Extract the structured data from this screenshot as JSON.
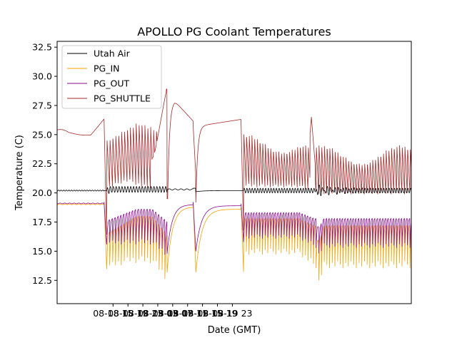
{
  "chart_data": {
    "type": "line",
    "title": "APOLLO PG Coolant Temperatures",
    "xlabel": "Date (GMT)",
    "ylabel": "Temperature (C)",
    "xlim_hours": [
      -3,
      92
    ],
    "ylim": [
      10.5,
      33
    ],
    "x_ticks": [
      {
        "hour": 12,
        "label": "08-18 15"
      },
      {
        "hour": 16,
        "label": "08-18 19"
      },
      {
        "hour": 20,
        "label": "08-18 23"
      },
      {
        "hour": 24,
        "label": "08-19 03"
      },
      {
        "hour": 28,
        "label": "08-19 07"
      },
      {
        "hour": 32,
        "label": "08-19 11"
      },
      {
        "hour": 36,
        "label": "08-19 15"
      },
      {
        "hour": 40,
        "label": "08-19 19"
      },
      {
        "hour": 44,
        "label": "08-19 23"
      }
    ],
    "y_ticks": [
      12.5,
      15.0,
      17.5,
      20.0,
      22.5,
      25.0,
      27.5,
      30.0,
      32.5
    ],
    "y_tick_labels": [
      "12.5",
      "15.0",
      "17.5",
      "20.0",
      "22.5",
      "25.0",
      "27.5",
      "30.0",
      "32.5"
    ],
    "legend_position": "top-left",
    "series": [
      {
        "name": "Utah Air",
        "color": "#000000",
        "baseline": 20.2,
        "cycle_amplitude": 0.4
      },
      {
        "name": "PG_IN",
        "color": "#f5a300",
        "steady_value": 19.0,
        "cycle_min": 12.9,
        "cycle_max": 19.2
      },
      {
        "name": "PG_OUT",
        "color": "#8b0e8b",
        "steady_value": 19.1,
        "cycle_min": 15.4,
        "cycle_max": 19.3
      },
      {
        "name": "PG_SHUTTLE",
        "color": "#a52a2a",
        "start_value": 25.2,
        "peak_value": 28.9,
        "cycle_min": 20.5,
        "cycle_max": 26.4
      }
    ],
    "segments_hours": [
      {
        "start": -3,
        "end": 9.6,
        "mode": "steady"
      },
      {
        "start": 9.6,
        "end": 26.5,
        "mode": "cycling"
      },
      {
        "start": 26.5,
        "end": 46.3,
        "mode": "recovery"
      },
      {
        "start": 46.3,
        "end": 66.0,
        "mode": "cycling"
      },
      {
        "start": 66.0,
        "end": 92,
        "mode": "cycling"
      }
    ]
  }
}
